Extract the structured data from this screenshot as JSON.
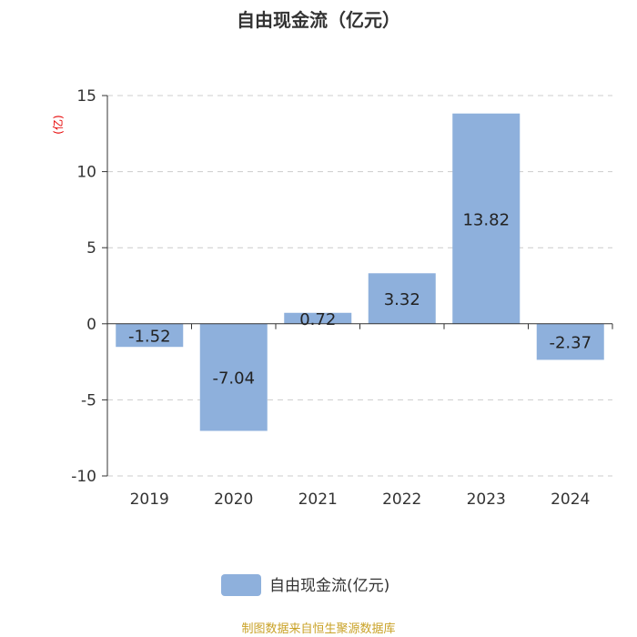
{
  "chart_data": {
    "type": "bar",
    "title": "自由现金流（亿元）",
    "ylabel": "(亿)",
    "categories": [
      "2019",
      "2020",
      "2021",
      "2022",
      "2023",
      "2024"
    ],
    "series": [
      {
        "name": "自由现金流(亿元)",
        "values": [
          -1.52,
          -7.04,
          0.72,
          3.32,
          13.82,
          -2.37
        ]
      }
    ],
    "value_labels": [
      "-1.52",
      "-7.04",
      "0.72",
      "3.32",
      "13.82",
      "-2.37"
    ],
    "ylim": [
      -10,
      15
    ],
    "yticks": [
      15,
      10,
      5,
      0,
      -5,
      -10
    ],
    "ytick_labels": [
      "15",
      "10",
      "5",
      "0",
      "-5",
      "-10"
    ],
    "grid": true,
    "legend_position": "bottom",
    "bar_color": "#8eb0dc"
  },
  "source": "制图数据来自恒生聚源数据库"
}
